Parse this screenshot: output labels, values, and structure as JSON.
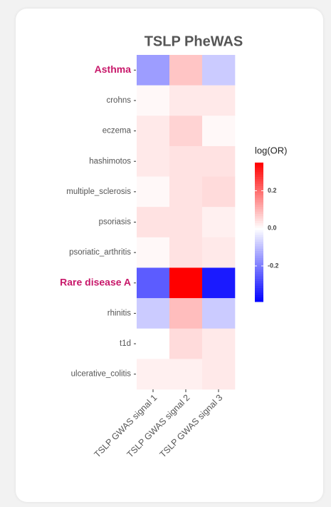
{
  "chart_data": {
    "type": "heatmap",
    "title": "TSLP PheWAS",
    "x_categories": [
      "TSLP GWAS signal 1",
      "TSLP GWAS signal 2",
      "TSLP GWAS signal 3"
    ],
    "y_categories": [
      "Asthma",
      "crohns",
      "eczema",
      "hashimotos",
      "multiple_sclerosis",
      "psoriasis",
      "psoriatic_arthritis",
      "Rare disease A",
      "rhinitis",
      "t1d",
      "ulcerative_colitis"
    ],
    "values": [
      [
        -0.15,
        0.08,
        -0.08
      ],
      [
        0.01,
        0.03,
        0.03
      ],
      [
        0.03,
        0.06,
        0.01
      ],
      [
        0.03,
        0.04,
        0.04
      ],
      [
        0.01,
        0.04,
        0.05
      ],
      [
        0.04,
        0.04,
        0.02
      ],
      [
        0.01,
        0.04,
        0.03
      ],
      [
        -0.25,
        0.35,
        -0.35
      ],
      [
        -0.08,
        0.09,
        -0.08
      ],
      [
        0.0,
        0.05,
        0.03
      ],
      [
        0.02,
        0.02,
        0.03
      ]
    ],
    "highlighted_rows": [
      0,
      7
    ],
    "highlight_color": "#c8186a",
    "colors": {
      "low": "#0000ff",
      "mid": "#ffffff",
      "high": "#ff0000"
    },
    "legend_title": "log(OR)",
    "zlim": [
      -0.39,
      0.35
    ],
    "zticks": [
      0.2,
      {
        "value": 0,
        "label": "0.0"
      },
      -0.2
    ]
  }
}
